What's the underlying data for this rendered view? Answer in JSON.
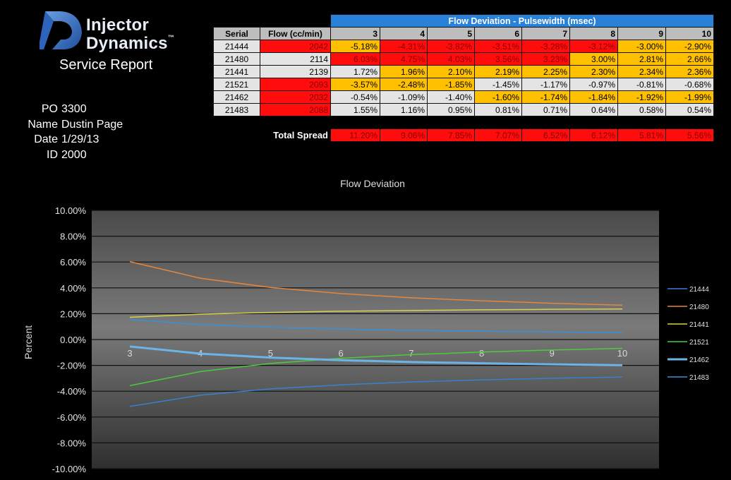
{
  "header": {
    "logo_line1": "Injector",
    "logo_line2": "Dynamics",
    "logo_tm": "™",
    "subtitle": "Service Report"
  },
  "info": [
    {
      "label": "PO",
      "value": "3300"
    },
    {
      "label": "Name",
      "value": "Dustin Page"
    },
    {
      "label": "Date",
      "value": "1/29/13"
    },
    {
      "label": "ID",
      "value": "2000"
    }
  ],
  "table": {
    "banner": "Flow Deviation - Pulsewidth (msec)",
    "serial_header": "Serial",
    "flow_header": "Flow (cc/min)",
    "pulsewidths": [
      "3",
      "4",
      "5",
      "6",
      "7",
      "8",
      "9",
      "10"
    ],
    "rows": [
      {
        "serial": "21444",
        "flow": "2042",
        "flow_color": "red",
        "values": [
          "-5.18%",
          "-4.31%",
          "-3.82%",
          "-3.51%",
          "-3.28%",
          "-3.12%",
          "-3.00%",
          "-2.90%"
        ],
        "colors": [
          "orange",
          "red",
          "red",
          "red",
          "red",
          "red",
          "orange",
          "orange"
        ]
      },
      {
        "serial": "21480",
        "flow": "2114",
        "flow_color": "grey",
        "values": [
          "6.03%",
          "4.75%",
          "4.03%",
          "3.56%",
          "3.23%",
          "3.00%",
          "2.81%",
          "2.66%"
        ],
        "colors": [
          "red",
          "red",
          "red",
          "red",
          "red",
          "orange",
          "orange",
          "orange"
        ]
      },
      {
        "serial": "21441",
        "flow": "2139",
        "flow_color": "grey",
        "values": [
          "1.72%",
          "1.96%",
          "2.10%",
          "2.19%",
          "2.25%",
          "2.30%",
          "2.34%",
          "2.36%"
        ],
        "colors": [
          "grey",
          "orange",
          "orange",
          "orange",
          "orange",
          "orange",
          "orange",
          "orange"
        ]
      },
      {
        "serial": "21521",
        "flow": "2093",
        "flow_color": "red",
        "values": [
          "-3.57%",
          "-2.48%",
          "-1.85%",
          "-1.45%",
          "-1.17%",
          "-0.97%",
          "-0.81%",
          "-0.68%"
        ],
        "colors": [
          "orange",
          "orange",
          "orange",
          "grey",
          "grey",
          "grey",
          "grey",
          "grey"
        ]
      },
      {
        "serial": "21462",
        "flow": "2032",
        "flow_color": "red",
        "values": [
          "-0.54%",
          "-1.09%",
          "-1.40%",
          "-1.60%",
          "-1.74%",
          "-1.84%",
          "-1.92%",
          "-1.99%"
        ],
        "colors": [
          "grey",
          "grey",
          "grey",
          "orange",
          "orange",
          "orange",
          "orange",
          "orange"
        ]
      },
      {
        "serial": "21483",
        "flow": "2088",
        "flow_color": "red",
        "values": [
          "1.55%",
          "1.16%",
          "0.95%",
          "0.81%",
          "0.71%",
          "0.64%",
          "0.58%",
          "0.54%"
        ],
        "colors": [
          "grey",
          "grey",
          "grey",
          "grey",
          "grey",
          "grey",
          "grey",
          "grey"
        ]
      }
    ],
    "spread_label": "Total Spread",
    "spread": [
      "11.20%",
      "9.06%",
      "7.85%",
      "7.07%",
      "6.52%",
      "6.12%",
      "5.81%",
      "5.56%"
    ]
  },
  "colors": {
    "red": "#ff0d0d",
    "orange": "#ffc000",
    "grey": "#e4e4e4",
    "banner": "#2a82d8"
  },
  "chart_data": {
    "type": "line",
    "title": "Flow Deviation",
    "xlabel": "",
    "ylabel": "Percent",
    "x": [
      3,
      4,
      5,
      6,
      7,
      8,
      9,
      10
    ],
    "ylim": [
      -10,
      10
    ],
    "ytick_step": 2,
    "grid": true,
    "legend_position": "right",
    "series": [
      {
        "name": "21444",
        "color": "#3a7fd0",
        "values": [
          -5.18,
          -4.31,
          -3.82,
          -3.51,
          -3.28,
          -3.12,
          -3.0,
          -2.9
        ]
      },
      {
        "name": "21480",
        "color": "#e8863a",
        "values": [
          6.03,
          4.75,
          4.03,
          3.56,
          3.23,
          3.0,
          2.81,
          2.66
        ]
      },
      {
        "name": "21441",
        "color": "#d8d24a",
        "values": [
          1.72,
          1.96,
          2.1,
          2.19,
          2.25,
          2.3,
          2.34,
          2.36
        ]
      },
      {
        "name": "21521",
        "color": "#4ccc3c",
        "values": [
          -3.57,
          -2.48,
          -1.85,
          -1.45,
          -1.17,
          -0.97,
          -0.81,
          -0.68
        ]
      },
      {
        "name": "21462",
        "color": "#6cb4e6",
        "values": [
          -0.54,
          -1.09,
          -1.4,
          -1.6,
          -1.74,
          -1.84,
          -1.92,
          -1.99
        ]
      },
      {
        "name": "21483",
        "color": "#3a8fd8",
        "values": [
          1.55,
          1.16,
          0.95,
          0.81,
          0.71,
          0.64,
          0.58,
          0.54
        ]
      }
    ]
  }
}
